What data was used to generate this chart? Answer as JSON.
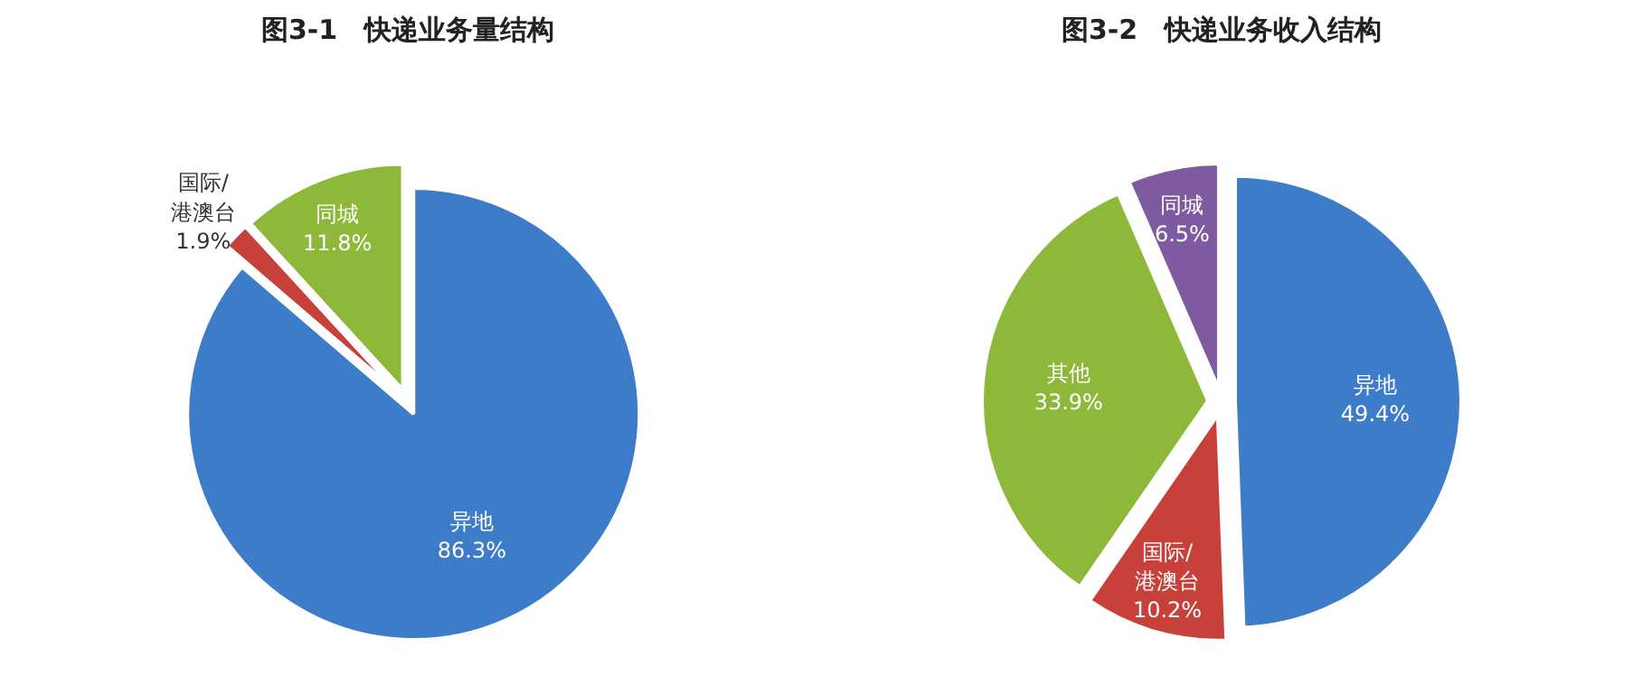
{
  "chart_data": [
    {
      "type": "pie",
      "title": "图3-1　快递业务量结构",
      "categories": [
        "异地",
        "国际/港澳台",
        "同城"
      ],
      "values": [
        86.3,
        1.9,
        11.8
      ],
      "value_labels": [
        "86.3%",
        "1.9%",
        "11.8%"
      ],
      "colors": [
        "#3d7cc9",
        "#c8403a",
        "#8db83a"
      ]
    },
    {
      "type": "pie",
      "title": "图3-2　快递业务收入结构",
      "categories": [
        "异地",
        "国际/港澳台",
        "其他",
        "同城"
      ],
      "values": [
        49.4,
        10.2,
        33.9,
        6.5
      ],
      "value_labels": [
        "49.4%",
        "10.2%",
        "33.9%",
        "6.5%"
      ],
      "colors": [
        "#3d7cc9",
        "#c8403a",
        "#8db83a",
        "#7e5aa0"
      ]
    }
  ]
}
